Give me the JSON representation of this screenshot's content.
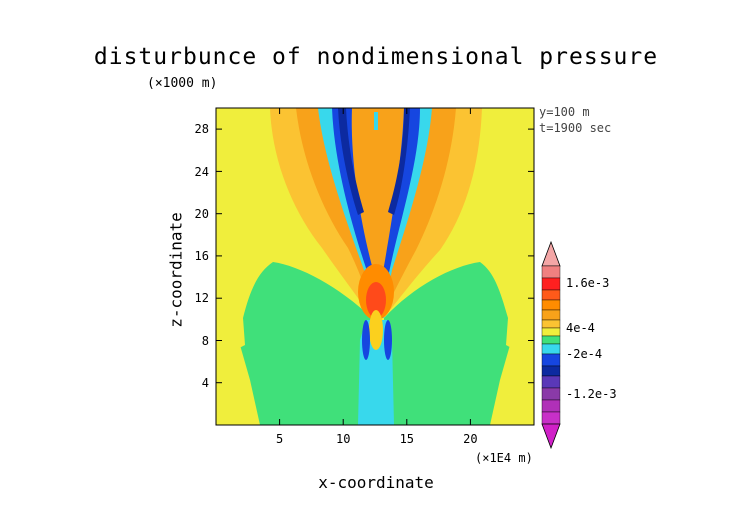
{
  "chart_data": {
    "type": "heatmap",
    "title": "disturbunce of nondimensional pressure",
    "ylabel": "z-coordinate",
    "yunit": "(×1000 m)",
    "xlabel": "x-coordinate",
    "xunit": "(×1E4 m)",
    "annotations": [
      "y=100 m",
      "t=1900 sec"
    ],
    "xlim": [
      0,
      25
    ],
    "ylim": [
      0,
      30
    ],
    "xticks": [
      5,
      10,
      15,
      20
    ],
    "yticks": [
      4,
      8,
      12,
      16,
      20,
      24,
      28
    ],
    "colorbar": {
      "labels": [
        "1.6e-3",
        "4e-4",
        "-2e-4",
        "-1.2e-3"
      ],
      "colors": {
        "max": "#f4a6a6",
        "positive_high": "#ff2020",
        "positive_mid": "#ff8c00",
        "positive_low": "#fbd01e",
        "near_zero": "#f0ee3c",
        "negative_low": "#40e07a",
        "negative_mid": "#38d8ec",
        "negative_high": "#1646e0",
        "min": "#c830c8"
      }
    },
    "background_color": "#f0ee3c"
  }
}
